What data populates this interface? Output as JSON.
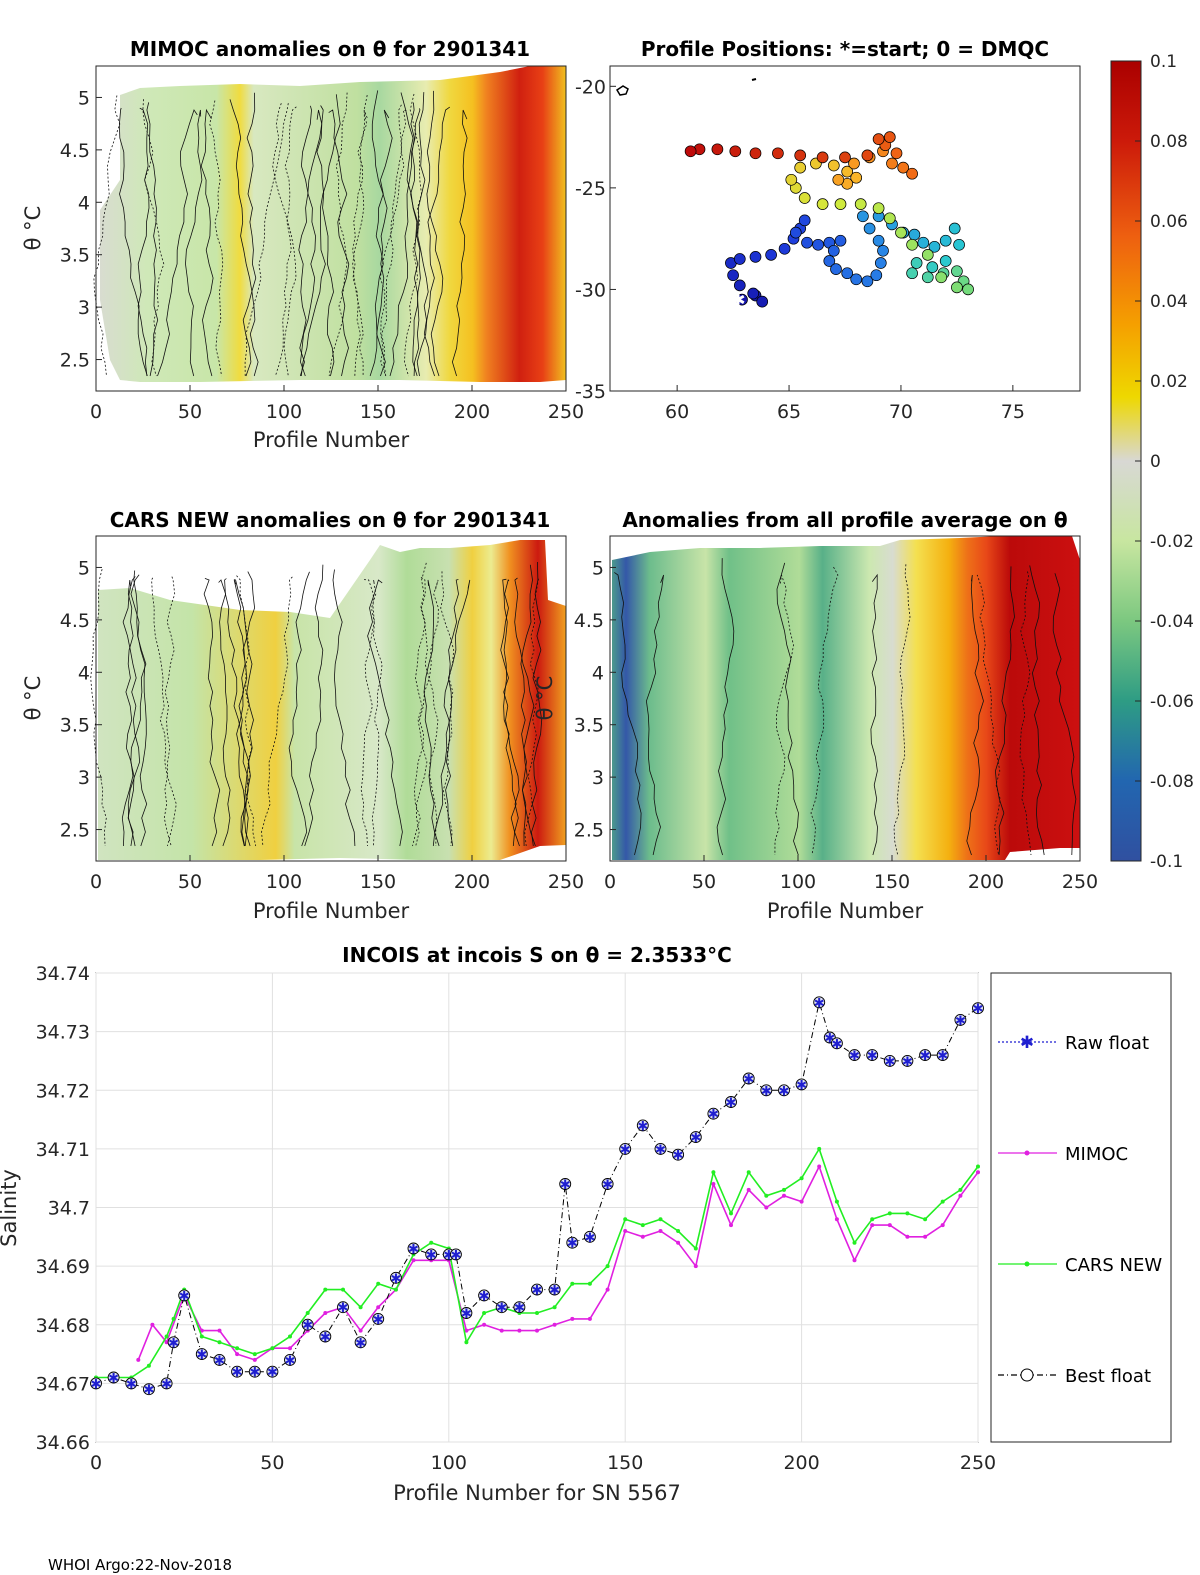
{
  "footer": "WHOI Argo:22-Nov-2018",
  "colorbar": {
    "ticks": [
      "0.1",
      "0.08",
      "0.06",
      "0.04",
      "0.02",
      "0",
      "-0.02",
      "-0.04",
      "-0.06",
      "-0.08",
      "-0.1"
    ],
    "range": [
      -0.1,
      0.1
    ]
  },
  "panels": {
    "mimoc": {
      "title": "MIMOC anomalies on θ  for 2901341",
      "xlabel": "Profile Number",
      "ylabel": "θ °C",
      "xticks": [
        "0",
        "50",
        "100",
        "150",
        "200",
        "250"
      ],
      "yticks": [
        "5",
        "4.5",
        "4",
        "3.5",
        "3",
        "2.5"
      ]
    },
    "positions": {
      "title": "Profile Positions: *=start; 0 = DMQC",
      "xticks": [
        "60",
        "65",
        "70",
        "75"
      ],
      "yticks": [
        "-20",
        "-25",
        "-30",
        "-35"
      ]
    },
    "cars": {
      "title": "CARS NEW anomalies on θ for 2901341",
      "xlabel": "Profile Number",
      "ylabel": "θ °C",
      "xticks": [
        "0",
        "50",
        "100",
        "150",
        "200",
        "250"
      ],
      "yticks": [
        "5",
        "4.5",
        "4",
        "3.5",
        "3",
        "2.5"
      ]
    },
    "average": {
      "title": "Anomalies from all profile average on θ",
      "xlabel": "Profile Number",
      "ylabel": "θ °C",
      "xticks": [
        "0",
        "50",
        "100",
        "150",
        "200",
        "250"
      ],
      "yticks": [
        "5",
        "4.5",
        "4",
        "3.5",
        "3",
        "2.5"
      ]
    }
  },
  "chart_data": {
    "type": "line",
    "title": "INCOIS at incois S on θ = 2.3533°C",
    "xlabel": "Profile Number for SN 5567",
    "ylabel": "Salinity",
    "xlim": [
      0,
      250
    ],
    "ylim": [
      34.66,
      34.74
    ],
    "xticks": [
      "0",
      "50",
      "100",
      "150",
      "200",
      "250"
    ],
    "yticks": [
      "34.74",
      "34.73",
      "34.72",
      "34.71",
      "34.7",
      "34.69",
      "34.68",
      "34.67",
      "34.66"
    ],
    "legend": [
      "Raw float",
      "MIMOC",
      "CARS NEW",
      "Best float"
    ],
    "series": [
      {
        "name": "Best float",
        "color": "#1f1fd0",
        "x": [
          0,
          5,
          10,
          15,
          20,
          22,
          25,
          30,
          35,
          40,
          45,
          50,
          55,
          60,
          65,
          70,
          75,
          80,
          85,
          90,
          95,
          100,
          102,
          105,
          110,
          115,
          120,
          125,
          130,
          133,
          135,
          140,
          145,
          150,
          155,
          160,
          165,
          170,
          175,
          180,
          185,
          190,
          195,
          200,
          205,
          208,
          210,
          215,
          220,
          225,
          230,
          235,
          240,
          245,
          250
        ],
        "values": [
          34.67,
          34.671,
          34.67,
          34.669,
          34.67,
          34.677,
          34.685,
          34.675,
          34.674,
          34.672,
          34.672,
          34.672,
          34.674,
          34.68,
          34.678,
          34.683,
          34.677,
          34.681,
          34.688,
          34.693,
          34.692,
          34.692,
          34.692,
          34.682,
          34.685,
          34.683,
          34.683,
          34.686,
          34.686,
          34.704,
          34.694,
          34.695,
          34.704,
          34.71,
          34.714,
          34.71,
          34.709,
          34.712,
          34.716,
          34.718,
          34.722,
          34.72,
          34.72,
          34.721,
          34.735,
          34.729,
          34.728,
          34.726,
          34.726,
          34.725,
          34.725,
          34.726,
          34.726,
          34.732,
          34.734
        ]
      },
      {
        "name": "MIMOC",
        "color": "#e020e0",
        "x": [
          12,
          16,
          20,
          25,
          30,
          35,
          40,
          45,
          50,
          55,
          60,
          65,
          70,
          75,
          80,
          85,
          90,
          95,
          100,
          105,
          110,
          115,
          120,
          125,
          130,
          135,
          140,
          145,
          150,
          155,
          160,
          165,
          170,
          175,
          180,
          185,
          190,
          195,
          200,
          205,
          210,
          215,
          220,
          225,
          230,
          235,
          240,
          245,
          250
        ],
        "values": [
          34.674,
          34.68,
          34.677,
          34.685,
          34.679,
          34.679,
          34.675,
          34.674,
          34.676,
          34.676,
          34.679,
          34.682,
          34.683,
          34.679,
          34.683,
          34.686,
          34.691,
          34.691,
          34.691,
          34.679,
          34.68,
          34.679,
          34.679,
          34.679,
          34.68,
          34.681,
          34.681,
          34.686,
          34.696,
          34.695,
          34.696,
          34.694,
          34.69,
          34.704,
          34.697,
          34.703,
          34.7,
          34.702,
          34.701,
          34.707,
          34.698,
          34.691,
          34.697,
          34.697,
          34.695,
          34.695,
          34.697,
          34.702,
          34.706
        ]
      },
      {
        "name": "CARS NEW",
        "color": "#22ee22",
        "x": [
          0,
          5,
          10,
          15,
          20,
          22,
          25,
          30,
          35,
          40,
          45,
          50,
          55,
          60,
          65,
          70,
          75,
          80,
          85,
          90,
          95,
          100,
          105,
          110,
          115,
          120,
          125,
          130,
          135,
          140,
          145,
          150,
          155,
          160,
          165,
          170,
          175,
          180,
          185,
          190,
          195,
          200,
          205,
          210,
          215,
          220,
          225,
          230,
          235,
          240,
          245,
          250
        ],
        "values": [
          34.671,
          34.671,
          34.671,
          34.673,
          34.678,
          34.681,
          34.686,
          34.678,
          34.677,
          34.676,
          34.675,
          34.676,
          34.678,
          34.682,
          34.686,
          34.686,
          34.683,
          34.687,
          34.686,
          34.692,
          34.694,
          34.693,
          34.677,
          34.682,
          34.683,
          34.682,
          34.682,
          34.683,
          34.687,
          34.687,
          34.69,
          34.698,
          34.697,
          34.698,
          34.696,
          34.693,
          34.706,
          34.699,
          34.706,
          34.702,
          34.703,
          34.705,
          34.71,
          34.701,
          34.694,
          34.698,
          34.699,
          34.699,
          34.698,
          34.701,
          34.703,
          34.707
        ]
      }
    ]
  }
}
